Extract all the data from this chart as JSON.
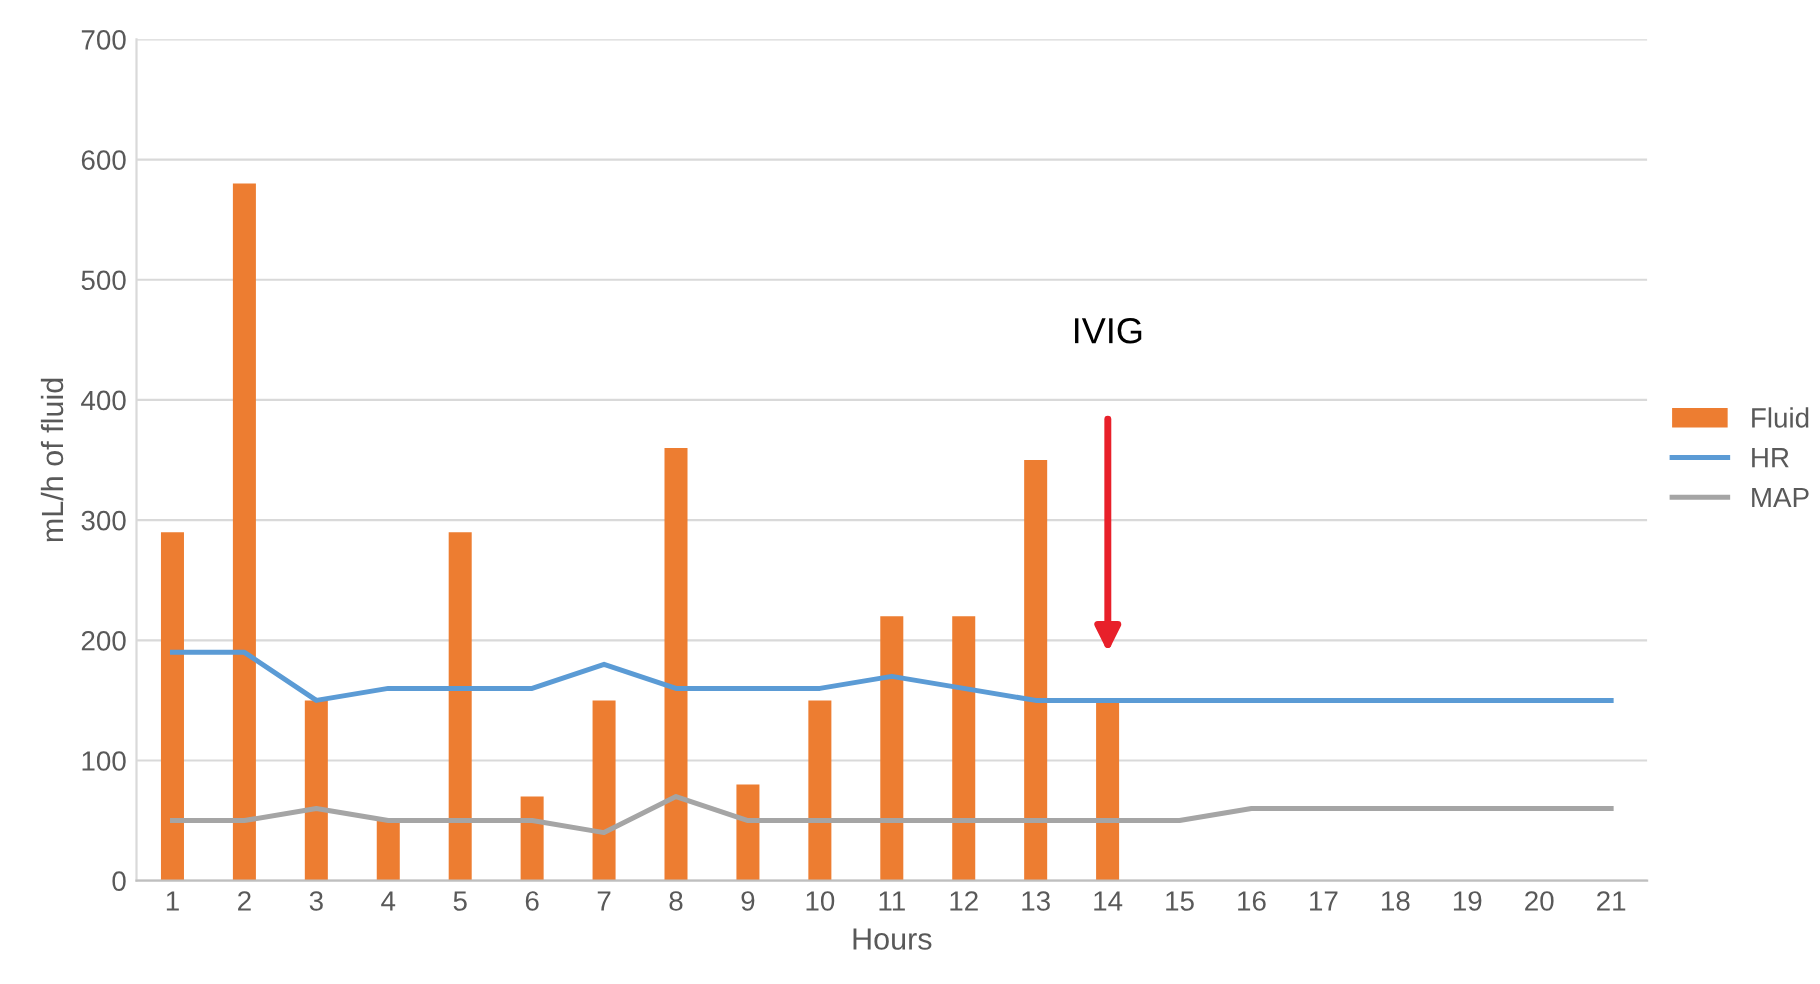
{
  "chart_data": {
    "type": "bar",
    "xlabel": "Hours",
    "ylabel": "mL/h of fluid",
    "categories": [
      "1",
      "2",
      "3",
      "4",
      "5",
      "6",
      "7",
      "8",
      "9",
      "10",
      "11",
      "12",
      "13",
      "14",
      "15",
      "16",
      "17",
      "18",
      "19",
      "20",
      "21"
    ],
    "series": [
      {
        "name": "Fluid",
        "color": "#ed7d31",
        "values": [
          290,
          580,
          150,
          50,
          290,
          70,
          150,
          360,
          80,
          150,
          220,
          220,
          350,
          150,
          null,
          null,
          null,
          null,
          null,
          null,
          null
        ]
      },
      {
        "name": "HR",
        "type": "line",
        "color": "#5b9bd5",
        "values": [
          190,
          190,
          150,
          160,
          160,
          160,
          180,
          160,
          160,
          160,
          170,
          160,
          150,
          150,
          150,
          150,
          150,
          150,
          150,
          150,
          150
        ]
      },
      {
        "name": "MAP",
        "type": "line",
        "color": "#a5a5a5",
        "values": [
          50,
          50,
          60,
          50,
          50,
          50,
          40,
          70,
          50,
          50,
          50,
          50,
          50,
          50,
          50,
          60,
          60,
          60,
          60,
          60,
          60
        ]
      }
    ],
    "ylim": [
      0,
      700
    ],
    "yticks": [
      0,
      100,
      200,
      300,
      400,
      500,
      600,
      700
    ],
    "grid": "y",
    "legend": "right",
    "marker": "none",
    "annotations": [
      "IVIG"
    ]
  }
}
